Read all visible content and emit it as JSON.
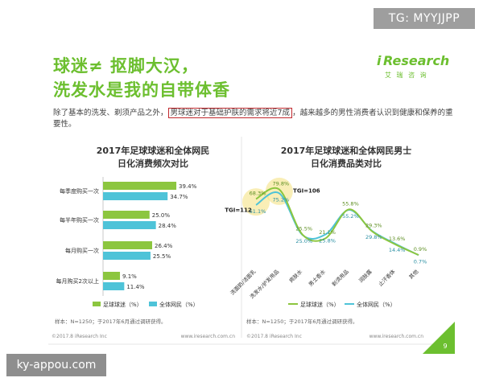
{
  "watermark_top": "TG: MYYJJPP",
  "watermark_bottom": "ky-appou.com",
  "title_line1": "球迷≠ 抠脚大汉，",
  "title_line2": "洗发水是我的自带体香",
  "logo": {
    "mark": "i",
    "name": "Research",
    "cn": "艾 瑞 咨 询"
  },
  "description": {
    "before": "除了基本的洗发、剃须产品之外，",
    "highlight": "男球迷对于基础护肤的需求将近7成",
    "after": "，越来越多的男性消费者认识到健康和保养的重要性。"
  },
  "colors": {
    "green": "#8cc63f",
    "blue": "#4ec3d8",
    "title_green": "#6cbf2f",
    "highlight_red": "#c0282d",
    "tgi_circle": "#f4e07a"
  },
  "chart_data": [
    {
      "type": "bar",
      "orientation": "horizontal",
      "title_line1": "2017年足球球迷和全体网民",
      "title_line2": "日化消费频次对比",
      "categories": [
        "每季度购买一次",
        "每半年购买一次",
        "每月购买一次",
        "每月购买2次以上"
      ],
      "series": [
        {
          "name": "足球球迷（%）",
          "values": [
            39.4,
            25.0,
            26.4,
            9.1
          ]
        },
        {
          "name": "全体网民（%）",
          "values": [
            34.7,
            28.4,
            25.5,
            11.4
          ]
        }
      ],
      "value_labels": [
        [
          "39.4%",
          "25.0%",
          "26.4%",
          "9.1%"
        ],
        [
          "34.7%",
          "28.4%",
          "25.5%",
          "11.4%"
        ]
      ],
      "xlim": [
        0,
        45
      ],
      "footnote": "样本：N=1250；于2017年6月通过调研获得。"
    },
    {
      "type": "line",
      "title_line1": "2017年足球球迷和全体网民男士",
      "title_line2": "日化消费品类对比",
      "categories": [
        "洗面奶/洁面乳",
        "洗发水/护发用品",
        "爽肤水",
        "男士香水",
        "剃须用品",
        "润肤露",
        "止汗香体",
        "其他"
      ],
      "series": [
        {
          "name": "足球球迷（%）",
          "values": [
            68.3,
            79.8,
            25.5,
            21.1,
            55.8,
            29.3,
            13.6,
            0.9
          ],
          "labels": [
            "68.3%",
            "79.8%",
            "25.5%",
            "21.1%",
            "55.8%",
            "29.3%",
            "13.6%",
            "0.9%"
          ]
        },
        {
          "name": "全体网民（%）",
          "values": [
            61.1,
            75.2,
            25.0,
            25.8,
            55.2,
            29.8,
            14.4,
            0.7
          ],
          "labels": [
            "61.1%",
            "75.2%",
            "25.0%",
            "25.8%",
            "55.2%",
            "29.8%",
            "14.4%",
            "0.7%"
          ]
        }
      ],
      "annotations": [
        {
          "text": "TGI=112",
          "category": "洗面奶/洁面乳"
        },
        {
          "text": "TGI=106",
          "category": "洗发水/护发用品"
        }
      ],
      "ylim": [
        0,
        90
      ],
      "footnote": "样本：N=1250；于2017年6月通过调研获得。"
    }
  ],
  "footer": {
    "copyright": "©2017.8 iResearch Inc",
    "site": "www.iresearch.com.cn",
    "page": "9"
  }
}
